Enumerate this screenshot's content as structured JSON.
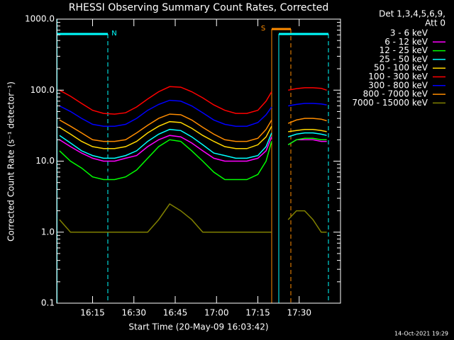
{
  "chart_data": {
    "type": "line",
    "title": "RHESSI Observing Summary Count Rates, Corrected",
    "xlabel": "Start Time (20-May-09 16:03:42)",
    "ylabel": "Corrected Count Rate (s⁻¹ detector⁻¹)",
    "legend_header": [
      "Det 1,3,4,5,6,9,",
      "Att 0"
    ],
    "annotations": [
      "N",
      "S"
    ],
    "footer": "14-Oct-2021 19:29",
    "log_y": true,
    "legend": "right",
    "xlim": [
      "16:02",
      "17:45"
    ],
    "xticks": [
      "16:15",
      "16:30",
      "16:45",
      "17:00",
      "17:15",
      "17:30"
    ],
    "ylim": [
      0.1,
      1000
    ],
    "yticks": [
      {
        "value": 1000,
        "label": "1000.0"
      },
      {
        "value": 100,
        "label": "100.0"
      },
      {
        "value": 10,
        "label": "10.0"
      },
      {
        "value": 1,
        "label": "1.0"
      },
      0.1
    ],
    "x": [
      "16:03",
      "16:07",
      "16:11",
      "16:15",
      "16:19",
      "16:23",
      "16:27",
      "16:31",
      "16:35",
      "16:39",
      "16:43",
      "16:47",
      "16:51",
      "16:55",
      "16:59",
      "17:03",
      "17:07",
      "17:11",
      "17:15",
      "17:18",
      "17:20",
      "17:23",
      "17:26",
      "17:29",
      "17:32",
      "17:35",
      "17:38",
      "17:40"
    ],
    "series": [
      {
        "name": "3 - 6 keV",
        "color": "#000000",
        "values": [
          13,
          10,
          8,
          7,
          7,
          7,
          7.5,
          9,
          12,
          16,
          18,
          17,
          14,
          11,
          9,
          8,
          8,
          8,
          9,
          12,
          20,
          null,
          18,
          20,
          20,
          20,
          20,
          20
        ]
      },
      {
        "name": "6 - 12 keV",
        "color": "#ff00ff",
        "values": [
          20,
          16,
          13,
          11,
          10,
          10,
          11,
          12,
          16,
          20,
          23,
          22,
          18,
          14,
          11,
          10,
          10,
          10,
          11,
          14,
          22,
          null,
          17,
          20,
          20,
          20,
          19,
          19
        ]
      },
      {
        "name": "12 - 25 keV",
        "color": "#00ff00",
        "values": [
          14,
          10,
          8,
          6,
          5.5,
          5.5,
          6,
          7.5,
          11,
          16,
          20,
          19,
          14,
          10,
          7,
          5.5,
          5.5,
          5.5,
          6.5,
          10,
          19,
          null,
          17,
          20,
          21,
          21,
          20,
          20
        ]
      },
      {
        "name": "25 - 50 keV",
        "color": "#00ffff",
        "values": [
          23,
          18,
          14,
          12,
          11,
          11,
          12,
          14,
          19,
          24,
          28,
          27,
          22,
          17,
          13,
          12,
          11,
          11,
          12,
          16,
          25,
          null,
          22,
          24,
          25,
          25,
          24,
          23
        ]
      },
      {
        "name": "50 - 100 keV",
        "color": "#ffd700",
        "values": [
          30,
          24,
          19,
          16,
          15,
          15,
          16,
          19,
          25,
          31,
          36,
          35,
          29,
          23,
          19,
          16,
          15,
          15,
          17,
          22,
          31,
          null,
          26,
          27,
          28,
          28,
          27,
          26
        ]
      },
      {
        "name": "100 - 300 keV",
        "color": "#ff0000",
        "values": [
          100,
          82,
          65,
          52,
          47,
          46,
          48,
          58,
          75,
          95,
          112,
          110,
          95,
          78,
          62,
          52,
          47,
          47,
          52,
          70,
          95,
          null,
          100,
          105,
          108,
          108,
          106,
          100
        ]
      },
      {
        "name": "300 - 800 keV",
        "color": "#0000ff",
        "values": [
          60,
          50,
          40,
          33,
          31,
          31,
          33,
          40,
          52,
          63,
          72,
          70,
          60,
          48,
          38,
          33,
          31,
          31,
          35,
          45,
          58,
          null,
          60,
          63,
          65,
          65,
          64,
          62
        ]
      },
      {
        "name": "800 - 7000 keV",
        "color": "#ff8c00",
        "values": [
          38,
          31,
          25,
          20,
          19,
          19,
          20,
          25,
          32,
          40,
          46,
          45,
          38,
          30,
          24,
          20,
          19,
          19,
          21,
          28,
          38,
          null,
          34,
          38,
          40,
          40,
          39,
          37
        ]
      },
      {
        "name": "7000 - 15000 keV",
        "color": "#808000",
        "values": [
          1.5,
          1,
          1,
          1,
          1,
          1,
          1,
          1,
          1,
          1.5,
          2.5,
          2,
          1.5,
          1,
          1,
          1,
          1,
          1,
          1,
          1,
          1,
          null,
          1.5,
          2,
          2,
          1.5,
          1,
          1
        ]
      }
    ]
  }
}
